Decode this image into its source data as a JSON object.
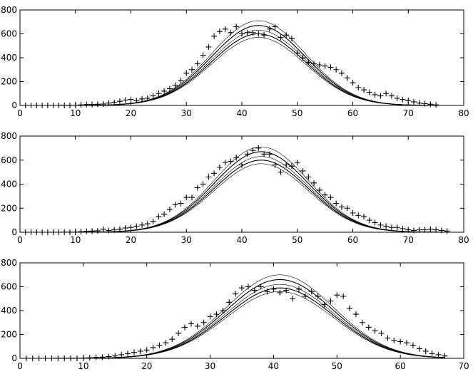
{
  "chart_data": [
    {
      "type": "scatter",
      "xlim": [
        0,
        80
      ],
      "ylim": [
        0,
        800
      ],
      "xticks": [
        "0",
        "10",
        "20",
        "30",
        "40",
        "50",
        "60",
        "70",
        "80"
      ],
      "yticks": [
        "0",
        "200",
        "400",
        "600",
        "800"
      ],
      "grid": false,
      "curves": {
        "peak_x": 43,
        "width": 8.5,
        "amplitudes": [
          570,
          600,
          630,
          670,
          710
        ],
        "x_range": [
          0,
          75
        ]
      },
      "points": [
        [
          1,
          0
        ],
        [
          2,
          0
        ],
        [
          3,
          0
        ],
        [
          4,
          0
        ],
        [
          5,
          0
        ],
        [
          6,
          0
        ],
        [
          7,
          0
        ],
        [
          8,
          0
        ],
        [
          9,
          0
        ],
        [
          10,
          0
        ],
        [
          11,
          5
        ],
        [
          12,
          8
        ],
        [
          13,
          8
        ],
        [
          14,
          10
        ],
        [
          15,
          12
        ],
        [
          16,
          20
        ],
        [
          17,
          25
        ],
        [
          18,
          35
        ],
        [
          19,
          45
        ],
        [
          20,
          50
        ],
        [
          21,
          40
        ],
        [
          22,
          55
        ],
        [
          23,
          60
        ],
        [
          24,
          80
        ],
        [
          25,
          100
        ],
        [
          26,
          120
        ],
        [
          27,
          140
        ],
        [
          28,
          170
        ],
        [
          29,
          210
        ],
        [
          30,
          270
        ],
        [
          31,
          300
        ],
        [
          32,
          350
        ],
        [
          33,
          420
        ],
        [
          34,
          490
        ],
        [
          35,
          580
        ],
        [
          36,
          620
        ],
        [
          37,
          640
        ],
        [
          38,
          610
        ],
        [
          39,
          660
        ],
        [
          40,
          600
        ],
        [
          41,
          610
        ],
        [
          42,
          610
        ],
        [
          43,
          600
        ],
        [
          44,
          590
        ],
        [
          45,
          640
        ],
        [
          46,
          660
        ],
        [
          47,
          570
        ],
        [
          48,
          590
        ],
        [
          49,
          560
        ],
        [
          50,
          440
        ],
        [
          51,
          400
        ],
        [
          52,
          360
        ],
        [
          53,
          350
        ],
        [
          54,
          340
        ],
        [
          55,
          330
        ],
        [
          56,
          320
        ],
        [
          57,
          300
        ],
        [
          58,
          270
        ],
        [
          59,
          230
        ],
        [
          60,
          190
        ],
        [
          61,
          150
        ],
        [
          62,
          130
        ],
        [
          63,
          110
        ],
        [
          64,
          90
        ],
        [
          65,
          80
        ],
        [
          66,
          100
        ],
        [
          67,
          80
        ],
        [
          68,
          60
        ],
        [
          69,
          50
        ],
        [
          70,
          40
        ],
        [
          71,
          30
        ],
        [
          72,
          20
        ],
        [
          73,
          15
        ],
        [
          74,
          10
        ],
        [
          75,
          5
        ]
      ]
    },
    {
      "type": "scatter",
      "xlim": [
        0,
        80
      ],
      "ylim": [
        0,
        800
      ],
      "xticks": [
        "0",
        "10",
        "20",
        "30",
        "40",
        "50",
        "60",
        "70",
        "80"
      ],
      "yticks": [
        "0",
        "200",
        "400",
        "600",
        "800"
      ],
      "grid": false,
      "curves": {
        "peak_x": 43.5,
        "width": 8.5,
        "amplitudes": [
          570,
          600,
          630,
          670,
          710
        ],
        "x_range": [
          0,
          77
        ]
      },
      "points": [
        [
          1,
          0
        ],
        [
          2,
          0
        ],
        [
          3,
          0
        ],
        [
          4,
          0
        ],
        [
          5,
          0
        ],
        [
          6,
          0
        ],
        [
          7,
          0
        ],
        [
          8,
          0
        ],
        [
          9,
          0
        ],
        [
          10,
          0
        ],
        [
          11,
          5
        ],
        [
          12,
          8
        ],
        [
          13,
          10
        ],
        [
          14,
          12
        ],
        [
          15,
          25
        ],
        [
          16,
          15
        ],
        [
          17,
          20
        ],
        [
          18,
          25
        ],
        [
          19,
          35
        ],
        [
          20,
          40
        ],
        [
          21,
          50
        ],
        [
          22,
          60
        ],
        [
          23,
          70
        ],
        [
          24,
          90
        ],
        [
          25,
          130
        ],
        [
          26,
          150
        ],
        [
          27,
          190
        ],
        [
          28,
          230
        ],
        [
          29,
          240
        ],
        [
          30,
          290
        ],
        [
          31,
          290
        ],
        [
          32,
          370
        ],
        [
          33,
          400
        ],
        [
          34,
          460
        ],
        [
          35,
          490
        ],
        [
          36,
          540
        ],
        [
          37,
          580
        ],
        [
          38,
          590
        ],
        [
          39,
          620
        ],
        [
          40,
          560
        ],
        [
          41,
          650
        ],
        [
          42,
          680
        ],
        [
          43,
          700
        ],
        [
          44,
          650
        ],
        [
          45,
          650
        ],
        [
          46,
          560
        ],
        [
          47,
          500
        ],
        [
          48,
          560
        ],
        [
          49,
          550
        ],
        [
          50,
          580
        ],
        [
          51,
          510
        ],
        [
          52,
          460
        ],
        [
          53,
          410
        ],
        [
          54,
          350
        ],
        [
          55,
          310
        ],
        [
          56,
          290
        ],
        [
          57,
          240
        ],
        [
          58,
          210
        ],
        [
          59,
          200
        ],
        [
          60,
          160
        ],
        [
          61,
          140
        ],
        [
          62,
          130
        ],
        [
          63,
          100
        ],
        [
          64,
          80
        ],
        [
          65,
          60
        ],
        [
          66,
          50
        ],
        [
          67,
          40
        ],
        [
          68,
          40
        ],
        [
          69,
          30
        ],
        [
          70,
          20
        ],
        [
          71,
          15
        ],
        [
          72,
          20
        ],
        [
          73,
          20
        ],
        [
          74,
          25
        ],
        [
          75,
          20
        ],
        [
          76,
          15
        ],
        [
          77,
          10
        ]
      ]
    },
    {
      "type": "scatter",
      "xlim": [
        0,
        70
      ],
      "ylim": [
        0,
        800
      ],
      "xticks": [
        "0",
        "10",
        "20",
        "30",
        "40",
        "50",
        "60",
        "70"
      ],
      "yticks": [
        "0",
        "200",
        "400",
        "600",
        "800"
      ],
      "grid": false,
      "curves": {
        "peak_x": 41,
        "width": 8.5,
        "amplitudes": [
          560,
          590,
          620,
          660,
          700
        ],
        "x_range": [
          0,
          67
        ]
      },
      "points": [
        [
          1,
          0
        ],
        [
          2,
          0
        ],
        [
          3,
          0
        ],
        [
          4,
          0
        ],
        [
          5,
          0
        ],
        [
          6,
          0
        ],
        [
          7,
          0
        ],
        [
          8,
          0
        ],
        [
          9,
          0
        ],
        [
          10,
          0
        ],
        [
          11,
          5
        ],
        [
          12,
          8
        ],
        [
          13,
          10
        ],
        [
          14,
          15
        ],
        [
          15,
          20
        ],
        [
          16,
          30
        ],
        [
          17,
          40
        ],
        [
          18,
          50
        ],
        [
          19,
          60
        ],
        [
          20,
          70
        ],
        [
          21,
          90
        ],
        [
          22,
          110
        ],
        [
          23,
          130
        ],
        [
          24,
          160
        ],
        [
          25,
          210
        ],
        [
          26,
          260
        ],
        [
          27,
          290
        ],
        [
          28,
          270
        ],
        [
          29,
          300
        ],
        [
          30,
          350
        ],
        [
          31,
          370
        ],
        [
          32,
          400
        ],
        [
          33,
          470
        ],
        [
          34,
          540
        ],
        [
          35,
          590
        ],
        [
          36,
          600
        ],
        [
          37,
          570
        ],
        [
          38,
          600
        ],
        [
          39,
          560
        ],
        [
          40,
          580
        ],
        [
          41,
          550
        ],
        [
          42,
          570
        ],
        [
          43,
          500
        ],
        [
          44,
          580
        ],
        [
          45,
          520
        ],
        [
          46,
          560
        ],
        [
          47,
          520
        ],
        [
          48,
          450
        ],
        [
          49,
          480
        ],
        [
          50,
          530
        ],
        [
          51,
          520
        ],
        [
          52,
          420
        ],
        [
          53,
          370
        ],
        [
          54,
          300
        ],
        [
          55,
          260
        ],
        [
          56,
          230
        ],
        [
          57,
          210
        ],
        [
          58,
          170
        ],
        [
          59,
          150
        ],
        [
          60,
          140
        ],
        [
          61,
          130
        ],
        [
          62,
          110
        ],
        [
          63,
          80
        ],
        [
          64,
          60
        ],
        [
          65,
          40
        ],
        [
          66,
          30
        ],
        [
          67,
          20
        ]
      ]
    }
  ]
}
